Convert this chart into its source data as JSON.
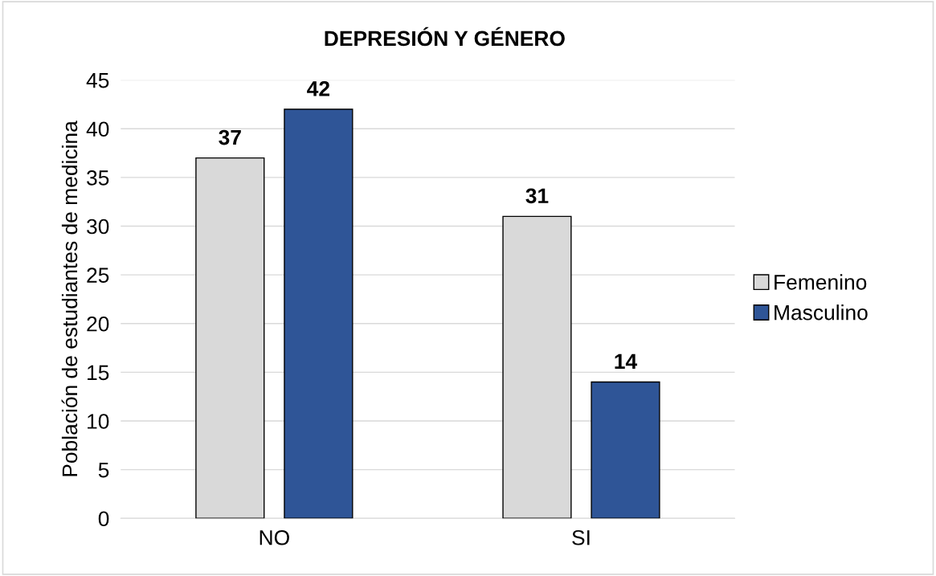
{
  "chart_data": {
    "type": "bar",
    "title": "DEPRESIÓN Y GÉNERO",
    "ylabel": "Población de estudiantes de medicina",
    "categories": [
      "NO",
      "SI"
    ],
    "series": [
      {
        "name": "Femenino",
        "color": "#d9d9d9",
        "values": [
          37,
          31
        ]
      },
      {
        "name": "Masculino",
        "color": "#2f5597",
        "values": [
          42,
          14
        ]
      }
    ],
    "ylim": [
      0,
      45
    ],
    "yticks": [
      0,
      5,
      10,
      15,
      20,
      25,
      30,
      35,
      40,
      45
    ],
    "grid": "y",
    "legend": "right",
    "data_labels": true
  }
}
